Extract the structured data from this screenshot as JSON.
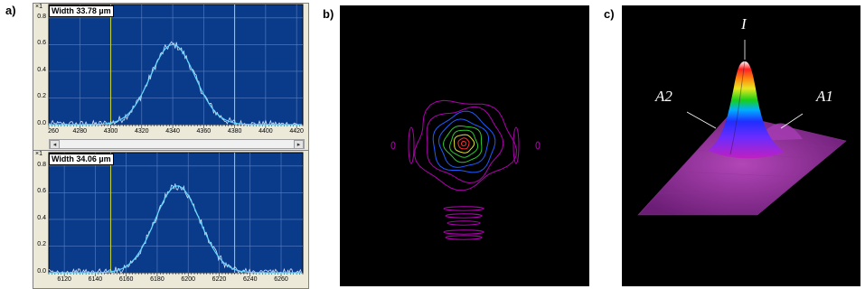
{
  "panels": {
    "a_label": "a)",
    "b_label": "b)",
    "c_label": "c)"
  },
  "colors": {
    "plot_bg": "#0a3b8a",
    "grid": "#5a7fc0",
    "cursor": "#c8d43a",
    "data_trace": "#d6e4ff",
    "fit_trace": "#5fd6ff",
    "contour_outer": "#b000b0",
    "contour_mid": "#1f5cff",
    "contour_inner": "#2ec82e",
    "contour_yellow": "#e0e030",
    "contour_core": "#ff3030"
  },
  "chart_data": [
    {
      "type": "line",
      "scale_mark": "×1",
      "width_label": "Width 33.78 µm",
      "xlim": [
        4260,
        4424
      ],
      "ylim": [
        0,
        0.9
      ],
      "xticks": [
        "4280",
        "4300",
        "4320",
        "4340",
        "4360",
        "4380",
        "4400",
        "4420"
      ],
      "xtick_first": "260",
      "yticks": [
        "0.0",
        "0.2",
        "0.4",
        "0.6",
        "0.8"
      ],
      "cursors": [
        4300,
        4380
      ],
      "peak_center": 4340,
      "peak_height": 0.6,
      "peak_fwhm": 33.78,
      "noise_level": 0.03
    },
    {
      "type": "line",
      "scale_mark": "×1",
      "width_label": "Width 34.06 µm",
      "xlim": [
        6110,
        6274
      ],
      "ylim": [
        0,
        0.9
      ],
      "xticks": [
        "6120",
        "6140",
        "6160",
        "6180",
        "6200",
        "6220",
        "6240",
        "6260"
      ],
      "yticks": [
        "0.0",
        "0.2",
        "0.4",
        "0.6",
        "0.8"
      ],
      "cursors": [
        6150,
        6230
      ],
      "peak_center": 6193,
      "peak_height": 0.65,
      "peak_fwhm": 34.06,
      "noise_level": 0.03
    }
  ],
  "surface_labels": {
    "peak": "I",
    "left": "A2",
    "right": "A1"
  }
}
